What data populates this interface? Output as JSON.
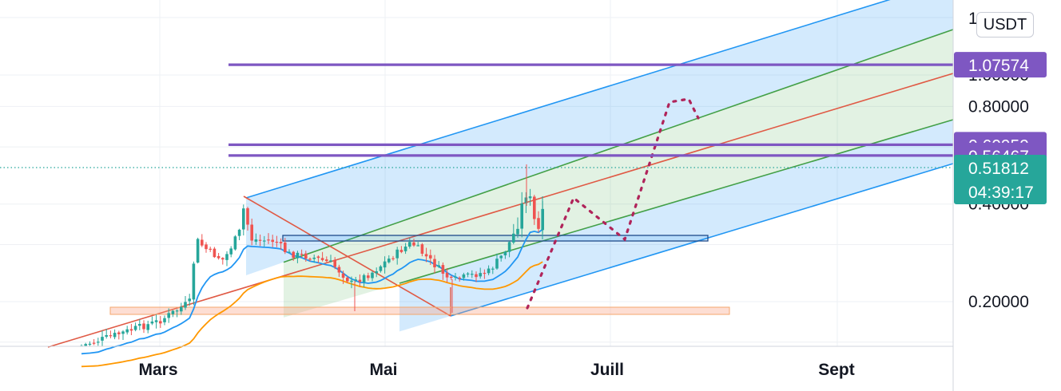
{
  "chart_data": {
    "type": "candlestick",
    "currency": "USDT",
    "x_axis": {
      "labels": [
        "Mars",
        "Mai",
        "Juill",
        "Sept"
      ]
    },
    "y_axis": {
      "scale": "log",
      "tick_labels": [
        {
          "value": 1.0,
          "label": "1.00000"
        },
        {
          "value": 0.8,
          "label": "0.80000"
        },
        {
          "value": 0.4,
          "label": "0.40000"
        },
        {
          "value": 0.2,
          "label": "0.20000"
        }
      ]
    },
    "price_levels": [
      {
        "label": "1.07574",
        "value": 1.07574,
        "color": "#7e57c2"
      },
      {
        "label": "0.60959",
        "value": 0.60959,
        "color": "#7e57c2"
      },
      {
        "label": "0.56467",
        "value": 0.56467,
        "color": "#7e57c2"
      }
    ],
    "current_price": {
      "label": "0.51812",
      "value": 0.51812,
      "countdown": "04:39:17",
      "color": "#26a69a"
    },
    "colors": {
      "up": "#26a69a",
      "down": "#ef5350",
      "channel_outer": "#2196f3",
      "channel_inner": "#43a047",
      "channel_median": "#e05a45",
      "ma_fast": "#2196f3",
      "ma_slow": "#ff9800",
      "projection": "#b0245a",
      "support_zone": "#f8c9b3"
    }
  }
}
